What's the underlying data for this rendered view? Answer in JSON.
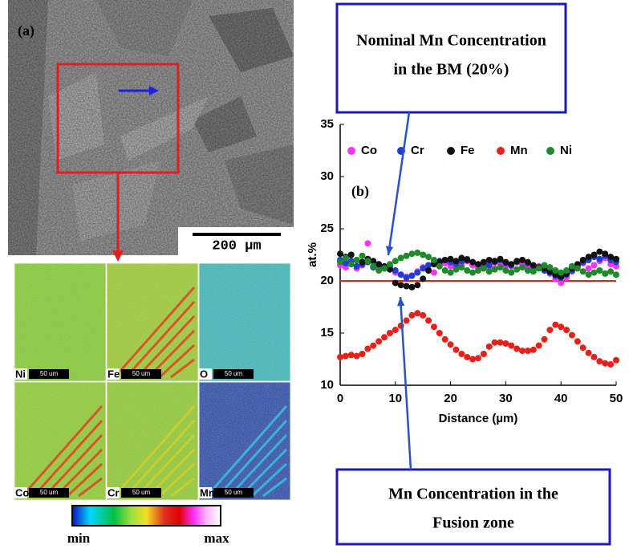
{
  "micrograph": {
    "label": "(a)",
    "scale_bar": "200 µm"
  },
  "eds_maps": {
    "elements": [
      "Ni",
      "Fe",
      "O",
      "Co",
      "Cr",
      "Mn"
    ],
    "scale_bar": "50 um",
    "colorbar_min": "min",
    "colorbar_max": "max"
  },
  "chart_data": {
    "type": "scatter",
    "panel_label": "(b)",
    "x_label": "Distance (µm)",
    "y_label": "at.%",
    "xlim": [
      0,
      50
    ],
    "ylim": [
      10,
      35
    ],
    "xticks": [
      0,
      10,
      20,
      30,
      40,
      50
    ],
    "yticks": [
      10,
      15,
      20,
      25,
      30,
      35
    ],
    "legend": "top",
    "x": [
      0,
      1,
      2,
      3,
      4,
      5,
      6,
      7,
      8,
      9,
      10,
      11,
      12,
      13,
      14,
      15,
      16,
      17,
      18,
      19,
      20,
      21,
      22,
      23,
      24,
      25,
      26,
      27,
      28,
      29,
      30,
      31,
      32,
      33,
      34,
      35,
      36,
      37,
      38,
      39,
      40,
      41,
      42,
      43,
      44,
      45,
      46,
      47,
      48,
      49,
      50
    ],
    "series": [
      {
        "name": "Co",
        "color": "#ff33ff",
        "values": [
          21.5,
          21.3,
          21.8,
          21.2,
          21.5,
          23.6,
          21.4,
          21.6,
          21.3,
          21.2,
          20.8,
          20.6,
          20.4,
          20.5,
          20.9,
          21.3,
          21.0,
          20.8,
          21.5,
          21.7,
          21.4,
          21.2,
          21.6,
          21.9,
          21.5,
          21.3,
          21.6,
          21.4,
          21.2,
          21.7,
          21.5,
          21.4,
          21.8,
          21.6,
          21.3,
          21.1,
          21.4,
          21.0,
          20.7,
          20.2,
          19.8,
          20.3,
          20.9,
          21.4,
          21.7,
          21.2,
          21.5,
          21.9,
          22.2,
          21.6,
          21.4
        ]
      },
      {
        "name": "Cr",
        "color": "#1f3fd0",
        "values": [
          22.0,
          21.7,
          21.9,
          21.4,
          21.6,
          21.8,
          21.3,
          21.5,
          21.2,
          21.4,
          21.0,
          20.6,
          20.3,
          20.5,
          20.8,
          21.2,
          21.5,
          21.7,
          21.9,
          22.0,
          21.8,
          21.6,
          21.9,
          22.1,
          21.8,
          21.6,
          21.3,
          21.5,
          21.8,
          22.0,
          21.7,
          21.5,
          21.8,
          22.0,
          21.7,
          21.4,
          21.2,
          21.0,
          20.8,
          20.5,
          20.3,
          20.6,
          21.0,
          21.4,
          21.8,
          22.0,
          22.3,
          22.1,
          22.4,
          22.0,
          21.8
        ]
      },
      {
        "name": "Fe",
        "color": "#111111",
        "values": [
          22.6,
          22.3,
          22.5,
          22.0,
          21.8,
          22.1,
          21.9,
          21.6,
          21.4,
          21.1,
          19.8,
          19.6,
          19.5,
          19.4,
          19.6,
          20.2,
          21.0,
          21.6,
          21.8,
          22.0,
          22.1,
          21.9,
          22.2,
          22.0,
          21.8,
          21.6,
          21.8,
          22.0,
          21.9,
          22.1,
          21.8,
          21.6,
          21.9,
          22.0,
          21.8,
          21.5,
          21.3,
          21.2,
          20.9,
          20.6,
          20.4,
          20.7,
          21.2,
          21.6,
          22.0,
          22.3,
          22.5,
          22.8,
          22.6,
          22.3,
          22.1
        ]
      },
      {
        "name": "Mn",
        "color": "#e8201a",
        "values": [
          12.7,
          12.8,
          12.9,
          12.8,
          13.0,
          13.5,
          13.8,
          14.2,
          14.6,
          15.0,
          15.3,
          15.7,
          16.2,
          16.7,
          16.9,
          16.7,
          16.2,
          15.6,
          15.0,
          14.4,
          13.9,
          13.4,
          13.0,
          12.7,
          12.5,
          12.6,
          13.0,
          13.7,
          14.1,
          14.1,
          14.0,
          13.8,
          13.5,
          13.3,
          13.3,
          13.4,
          13.8,
          14.4,
          15.3,
          15.8,
          15.6,
          15.3,
          14.8,
          14.2,
          13.6,
          13.1,
          12.7,
          12.3,
          12.1,
          12.0,
          12.4
        ]
      },
      {
        "name": "Ni",
        "color": "#1e8a2a",
        "values": [
          21.8,
          22.2,
          21.6,
          22.0,
          22.4,
          21.9,
          21.4,
          21.0,
          21.2,
          21.6,
          21.9,
          22.2,
          22.4,
          22.6,
          22.7,
          22.5,
          22.3,
          22.0,
          21.4,
          21.0,
          20.8,
          21.1,
          21.3,
          21.0,
          20.8,
          21.0,
          21.2,
          20.9,
          21.1,
          21.3,
          21.0,
          20.8,
          21.1,
          21.3,
          21.0,
          20.9,
          21.2,
          21.5,
          21.3,
          21.0,
          20.8,
          21.0,
          21.4,
          21.2,
          20.9,
          20.6,
          20.8,
          21.0,
          20.7,
          20.9,
          20.6
        ]
      }
    ],
    "reference_line": {
      "value": 20,
      "color": "#e8201a"
    },
    "annotations": [
      {
        "lines": [
          "Nominal Mn Concentration",
          "in the BM (20%)"
        ]
      },
      {
        "lines": [
          "Mn Concentration in the",
          "Fusion zone"
        ]
      }
    ]
  }
}
